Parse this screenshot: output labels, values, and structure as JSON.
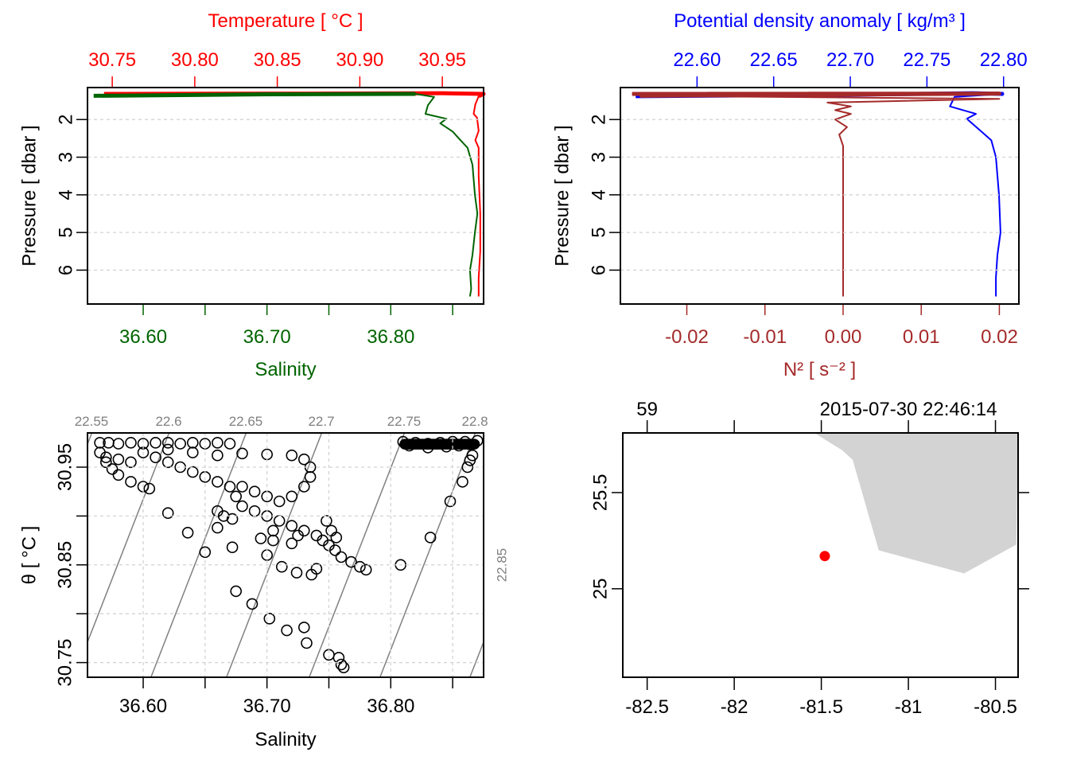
{
  "colors": {
    "temperature": "#ff0000",
    "salinity": "#006400",
    "density": "#0000ff",
    "n2": "#a52a2a",
    "grid": "#d3d3d3",
    "isopycnal": "#808080",
    "land": "#d3d3d3",
    "station": "#ff0000",
    "axis": "#000000"
  },
  "chart_data": [
    {
      "id": "temperature-salinity-profile",
      "type": "line",
      "ylabel": "Pressure [ dbar ]",
      "ylim": [
        6.9,
        1.15
      ],
      "yticks": [
        "2",
        "3",
        "4",
        "5",
        "6"
      ],
      "grid": true,
      "top_axis": {
        "label": "Temperature [ °C ]",
        "ticks": [
          "30.75",
          "30.80",
          "30.85",
          "30.90",
          "30.95"
        ],
        "range": [
          30.735,
          30.975
        ]
      },
      "bottom_axis": {
        "label": "Salinity",
        "ticks": [
          "36.60",
          "36.70",
          "36.80"
        ],
        "minor_ticks": [
          36.65,
          36.75,
          36.85
        ],
        "range": [
          36.555,
          36.875
        ]
      },
      "series": [
        {
          "name": "Temperature",
          "axis": "top",
          "points": [
            [
              30.745,
              1.32
            ],
            [
              30.86,
              1.31
            ],
            [
              30.95,
              1.3
            ],
            [
              30.975,
              1.32
            ],
            [
              30.972,
              1.38
            ],
            [
              30.97,
              1.6
            ],
            [
              30.969,
              1.85
            ],
            [
              30.971,
              1.95
            ],
            [
              30.972,
              2.3
            ],
            [
              30.97,
              2.55
            ],
            [
              30.972,
              2.75
            ],
            [
              30.972,
              3.5
            ],
            [
              30.973,
              4.5
            ],
            [
              30.973,
              5.5
            ],
            [
              30.972,
              6.2
            ],
            [
              30.972,
              6.7
            ]
          ]
        },
        {
          "name": "Salinity",
          "axis": "bottom",
          "points": [
            [
              36.56,
              1.37
            ],
            [
              36.7,
              1.33
            ],
            [
              36.82,
              1.32
            ],
            [
              36.835,
              1.4
            ],
            [
              36.83,
              1.62
            ],
            [
              36.828,
              1.85
            ],
            [
              36.845,
              1.98
            ],
            [
              36.84,
              2.1
            ],
            [
              36.85,
              2.32
            ],
            [
              36.855,
              2.5
            ],
            [
              36.862,
              2.75
            ],
            [
              36.866,
              3.2
            ],
            [
              36.868,
              4.0
            ],
            [
              36.87,
              4.5
            ],
            [
              36.868,
              5.0
            ],
            [
              36.866,
              5.6
            ],
            [
              36.864,
              6.0
            ],
            [
              36.865,
              6.5
            ],
            [
              36.864,
              6.7
            ]
          ]
        }
      ]
    },
    {
      "id": "density-n2-profile",
      "type": "line",
      "ylabel": "Pressure [ dbar ]",
      "ylim": [
        6.9,
        1.15
      ],
      "yticks": [
        "2",
        "3",
        "4",
        "5",
        "6"
      ],
      "grid": true,
      "top_axis": {
        "label": "Potential density anomaly [ kg/m³ ]",
        "ticks": [
          "22.60",
          "22.65",
          "22.70",
          "22.75",
          "22.80"
        ],
        "range": [
          22.55,
          22.81
        ]
      },
      "bottom_axis": {
        "label": "N² [ s⁻² ]",
        "ticks": [
          "-0.02",
          "-0.01",
          "0.00",
          "0.01",
          "0.02"
        ],
        "range": [
          -0.0285,
          0.0225
        ]
      },
      "series": [
        {
          "name": "Potential density anomaly",
          "axis": "top",
          "points": [
            [
              22.56,
              1.38
            ],
            [
              22.7,
              1.34
            ],
            [
              22.78,
              1.3
            ],
            [
              22.8,
              1.32
            ],
            [
              22.768,
              1.4
            ],
            [
              22.765,
              1.65
            ],
            [
              22.782,
              1.85
            ],
            [
              22.776,
              1.98
            ],
            [
              22.785,
              2.3
            ],
            [
              22.792,
              2.55
            ],
            [
              22.795,
              3.0
            ],
            [
              22.797,
              4.0
            ],
            [
              22.798,
              5.0
            ],
            [
              22.796,
              5.6
            ],
            [
              22.795,
              6.2
            ],
            [
              22.795,
              6.7
            ]
          ]
        },
        {
          "name": "N²",
          "axis": "bottom",
          "points": [
            [
              -0.027,
              1.32
            ],
            [
              0.02,
              1.31
            ],
            [
              -0.026,
              1.37
            ],
            [
              0.02,
              1.45
            ],
            [
              -0.002,
              1.55
            ],
            [
              0.001,
              1.65
            ],
            [
              -0.001,
              1.75
            ],
            [
              0.001,
              1.85
            ],
            [
              -0.001,
              2.0
            ],
            [
              0.0005,
              2.2
            ],
            [
              -0.0005,
              2.4
            ],
            [
              0.0,
              2.7
            ],
            [
              0.0,
              3.5
            ],
            [
              0.0,
              4.5
            ],
            [
              0.0,
              5.5
            ],
            [
              0.0,
              6.5
            ],
            [
              0.0,
              6.7
            ]
          ]
        }
      ]
    },
    {
      "id": "ts-diagram",
      "type": "scatter",
      "xlabel": "Salinity",
      "ylabel": "θ [ °C ]",
      "xlim": [
        36.555,
        36.875
      ],
      "ylim": [
        30.735,
        30.985
      ],
      "xticks": [
        "36.60",
        "36.70",
        "36.80"
      ],
      "xminor": [
        36.65,
        36.75,
        36.85
      ],
      "yticks": [
        "30.75",
        "30.85",
        "30.95"
      ],
      "yminor": [
        30.8,
        30.9
      ],
      "grid": true,
      "isopycnals": {
        "labels_top": [
          "22.55",
          "22.6",
          "22.65",
          "22.7",
          "22.75",
          "22.8"
        ],
        "label_right": "22.85"
      },
      "points": [
        [
          36.565,
          30.975
        ],
        [
          36.572,
          30.975
        ],
        [
          36.58,
          30.974
        ],
        [
          36.59,
          30.975
        ],
        [
          36.6,
          30.974
        ],
        [
          36.61,
          30.975
        ],
        [
          36.62,
          30.975
        ],
        [
          36.63,
          30.974
        ],
        [
          36.64,
          30.975
        ],
        [
          36.65,
          30.974
        ],
        [
          36.66,
          30.975
        ],
        [
          36.67,
          30.974
        ],
        [
          36.565,
          30.965
        ],
        [
          36.57,
          30.955
        ],
        [
          36.575,
          30.948
        ],
        [
          36.58,
          30.942
        ],
        [
          36.59,
          30.935
        ],
        [
          36.6,
          30.93
        ],
        [
          36.605,
          30.928
        ],
        [
          36.57,
          30.96
        ],
        [
          36.58,
          30.958
        ],
        [
          36.59,
          30.955
        ],
        [
          36.6,
          30.965
        ],
        [
          36.61,
          30.96
        ],
        [
          36.62,
          30.955
        ],
        [
          36.63,
          30.95
        ],
        [
          36.64,
          30.945
        ],
        [
          36.65,
          30.94
        ],
        [
          36.66,
          30.935
        ],
        [
          36.67,
          30.93
        ],
        [
          36.62,
          30.968
        ],
        [
          36.64,
          30.965
        ],
        [
          36.66,
          30.962
        ],
        [
          36.68,
          30.964
        ],
        [
          36.7,
          30.963
        ],
        [
          36.72,
          30.962
        ],
        [
          36.73,
          30.958
        ],
        [
          36.735,
          30.95
        ],
        [
          36.735,
          30.94
        ],
        [
          36.73,
          30.93
        ],
        [
          36.72,
          30.92
        ],
        [
          36.71,
          30.915
        ],
        [
          36.7,
          30.92
        ],
        [
          36.69,
          30.925
        ],
        [
          36.68,
          30.93
        ],
        [
          36.675,
          30.92
        ],
        [
          36.68,
          30.91
        ],
        [
          36.69,
          30.905
        ],
        [
          36.7,
          30.9
        ],
        [
          36.71,
          30.895
        ],
        [
          36.72,
          30.89
        ],
        [
          36.73,
          30.885
        ],
        [
          36.74,
          30.88
        ],
        [
          36.745,
          30.875
        ],
        [
          36.75,
          30.87
        ],
        [
          36.755,
          30.865
        ],
        [
          36.748,
          30.895
        ],
        [
          36.752,
          30.885
        ],
        [
          36.756,
          30.878
        ],
        [
          36.66,
          30.905
        ],
        [
          36.665,
          30.9
        ],
        [
          36.672,
          30.897
        ],
        [
          36.62,
          30.903
        ],
        [
          36.636,
          30.883
        ],
        [
          36.65,
          30.863
        ],
        [
          36.66,
          30.888
        ],
        [
          36.672,
          30.868
        ],
        [
          36.7,
          30.86
        ],
        [
          36.712,
          30.848
        ],
        [
          36.724,
          30.842
        ],
        [
          36.736,
          30.84
        ],
        [
          36.74,
          30.846
        ],
        [
          36.76,
          30.858
        ],
        [
          36.768,
          30.853
        ],
        [
          36.775,
          30.848
        ],
        [
          36.78,
          30.845
        ],
        [
          36.695,
          30.877
        ],
        [
          36.705,
          30.885
        ],
        [
          36.705,
          30.875
        ],
        [
          36.72,
          30.872
        ],
        [
          36.725,
          30.88
        ],
        [
          36.675,
          30.823
        ],
        [
          36.688,
          30.81
        ],
        [
          36.702,
          30.795
        ],
        [
          36.716,
          30.783
        ],
        [
          36.73,
          30.786
        ],
        [
          36.732,
          30.77
        ],
        [
          36.75,
          30.758
        ],
        [
          36.758,
          30.755
        ],
        [
          36.76,
          30.748
        ],
        [
          36.762,
          30.745
        ],
        [
          36.808,
          30.85
        ],
        [
          36.832,
          30.878
        ],
        [
          36.848,
          30.915
        ],
        [
          36.858,
          30.935
        ],
        [
          36.862,
          30.95
        ],
        [
          36.864,
          30.957
        ],
        [
          36.866,
          30.962
        ],
        [
          36.81,
          30.976
        ],
        [
          36.82,
          30.975
        ],
        [
          36.83,
          30.974
        ],
        [
          36.84,
          30.975
        ],
        [
          36.85,
          30.976
        ],
        [
          36.86,
          30.976
        ],
        [
          36.87,
          30.977
        ],
        [
          36.815,
          30.972
        ],
        [
          36.83,
          30.97
        ],
        [
          36.845,
          30.971
        ],
        [
          36.855,
          30.972
        ],
        [
          36.865,
          30.973
        ]
      ]
    },
    {
      "id": "station-map",
      "type": "scatter",
      "xlim": [
        -82.64,
        -80.37
      ],
      "ylim": [
        24.54,
        25.81
      ],
      "xticks": [
        "-82.5",
        "-82",
        "-81.5",
        "-81",
        "-80.5"
      ],
      "yticks": [
        "25",
        "25.5"
      ],
      "top_labels": [
        "59",
        "2015-07-30 22:46:14"
      ],
      "station": {
        "lon": -81.48,
        "lat": 25.17
      },
      "coastline": [
        [
          -81.54,
          25.81
        ],
        [
          -81.38,
          25.72
        ],
        [
          -81.32,
          25.67
        ],
        [
          -81.17,
          25.2
        ],
        [
          -80.68,
          25.08
        ],
        [
          -80.38,
          25.23
        ],
        [
          -80.37,
          25.81
        ]
      ]
    }
  ]
}
